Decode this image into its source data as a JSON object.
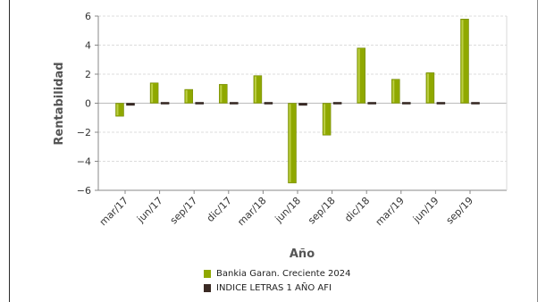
{
  "chart_data": {
    "type": "bar",
    "title": "",
    "xlabel": "Año",
    "ylabel": "Rentabilidad",
    "ylim": [
      -6,
      6
    ],
    "yticks": [
      -6,
      -4,
      -2,
      0,
      2,
      4,
      6
    ],
    "grid": true,
    "legend_position": "bottom",
    "categories": [
      "mar/17",
      "jun/17",
      "sep/17",
      "dic/17",
      "mar/18",
      "jun/18",
      "sep/18",
      "dic/18",
      "mar/19",
      "jun/19",
      "sep/19"
    ],
    "series": [
      {
        "name": "Bankia Garan. Creciente 2024",
        "color": "#8fa800",
        "values": [
          -0.9,
          1.4,
          0.95,
          1.3,
          1.9,
          -5.5,
          -2.2,
          3.8,
          1.65,
          2.1,
          5.8
        ]
      },
      {
        "name": "INDICE LETRAS 1 AÑO AFI",
        "color": "#3a2a24",
        "values": [
          -0.15,
          -0.03,
          -0.02,
          0.08,
          -0.1,
          -0.15,
          -0.1,
          -0.03,
          -0.05,
          0.05,
          -0.02
        ]
      }
    ]
  }
}
